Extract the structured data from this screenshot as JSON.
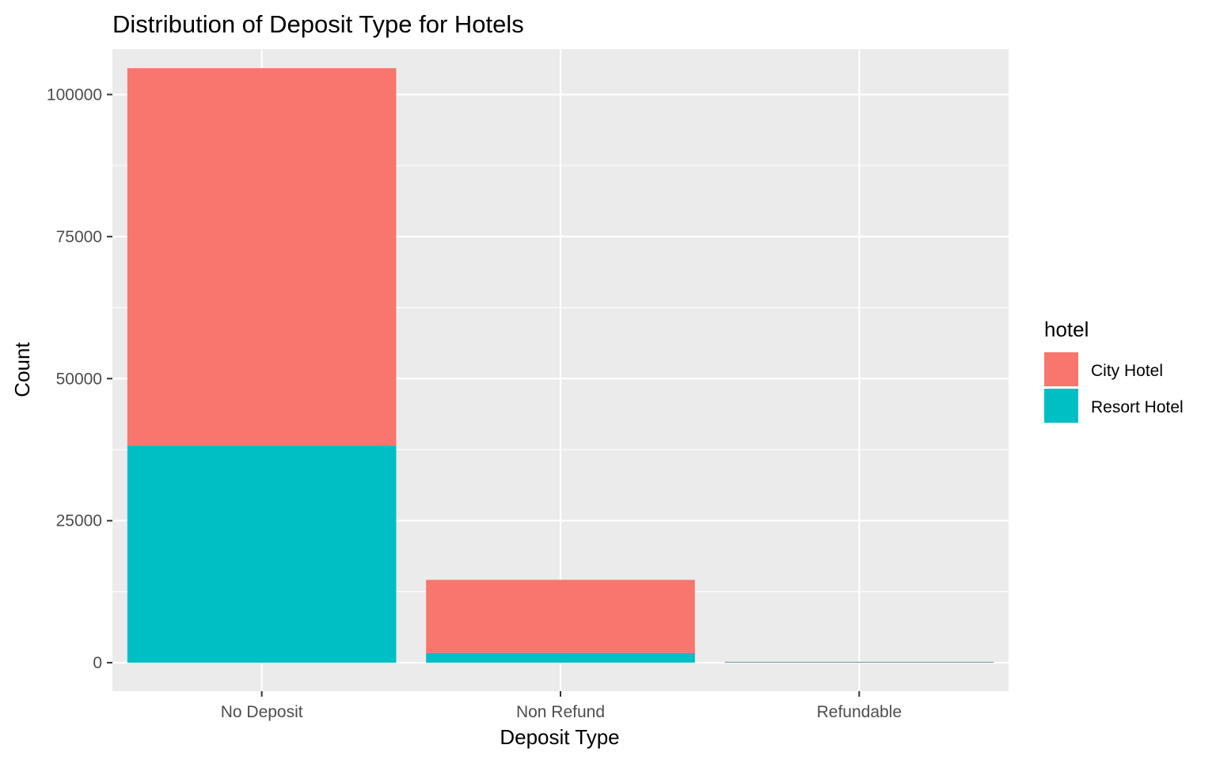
{
  "chart_data": {
    "type": "bar",
    "stacked": true,
    "title": "Distribution of Deposit Type for Hotels",
    "xlabel": "Deposit Type",
    "ylabel": "Count",
    "categories": [
      "No Deposit",
      "Non Refund",
      "Refundable"
    ],
    "series": [
      {
        "name": "City Hotel",
        "color": "#F8766D",
        "values": [
          66442,
          12868,
          20
        ]
      },
      {
        "name": "Resort Hotel",
        "color": "#00BFC4",
        "values": [
          38199,
          1719,
          142
        ]
      }
    ],
    "ylim": [
      -5000,
      108000
    ],
    "yticks": [
      0,
      25000,
      50000,
      75000,
      100000
    ],
    "ytick_labels": [
      "0",
      "25000",
      "50000",
      "75000",
      "100000"
    ],
    "grid": true,
    "panel_color": "#EBEBEB",
    "legend": {
      "title": "hotel",
      "position": "right"
    }
  }
}
